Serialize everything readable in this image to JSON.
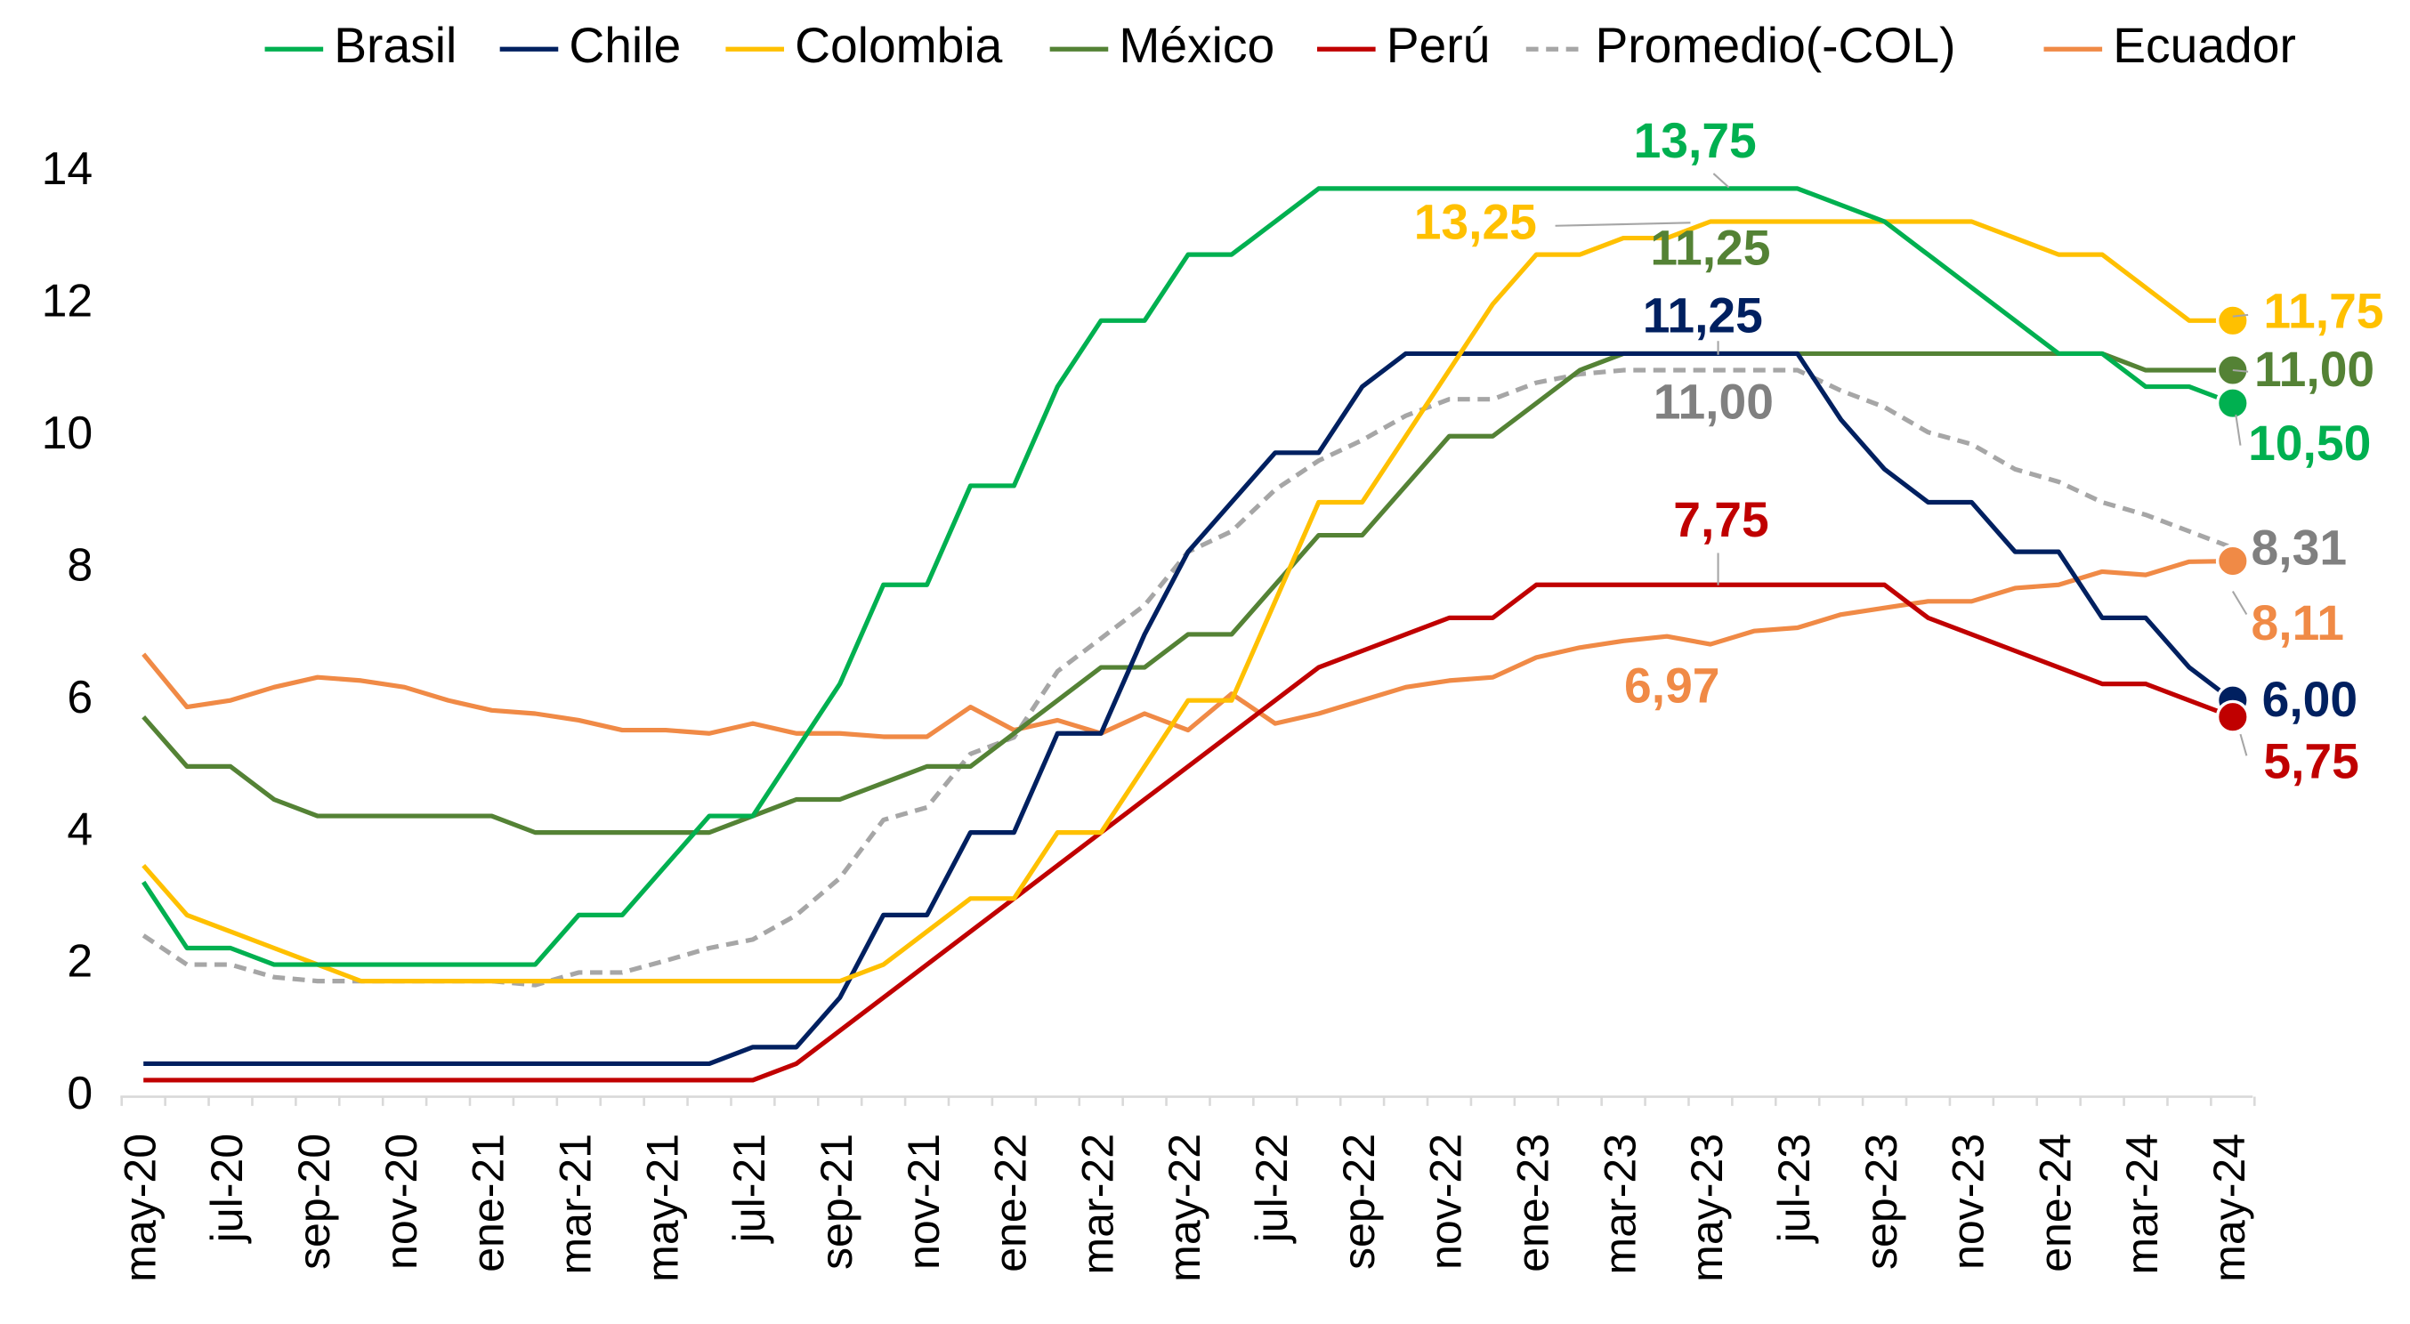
{
  "chart_data": {
    "type": "line",
    "legend": "top",
    "grid": false,
    "categories": [
      "may-20",
      null,
      "jul-20",
      null,
      "sep-20",
      null,
      "nov-20",
      null,
      "ene-21",
      null,
      "mar-21",
      null,
      "may-21",
      null,
      "jul-21",
      null,
      "sep-21",
      null,
      "nov-21",
      null,
      "ene-22",
      null,
      "mar-22",
      null,
      "may-22",
      null,
      "jul-22",
      null,
      "sep-22",
      null,
      "nov-22",
      null,
      "ene-23",
      null,
      "mar-23",
      null,
      "may-23",
      null,
      "jul-23",
      null,
      "sep-23",
      null,
      "nov-23",
      null,
      "ene-24",
      null,
      "mar-24",
      null,
      "may-24"
    ],
    "ylim": [
      0,
      14
    ],
    "yticks": [
      0,
      2,
      4,
      6,
      8,
      10,
      12,
      14
    ],
    "series": [
      {
        "name": "Brasil",
        "color": "#00b050",
        "values": [
          3.25,
          2.25,
          2.25,
          2.0,
          2.0,
          2.0,
          2.0,
          2.0,
          2.0,
          2.0,
          2.75,
          2.75,
          3.5,
          4.25,
          4.25,
          5.25,
          6.25,
          7.75,
          7.75,
          9.25,
          9.25,
          10.75,
          11.75,
          11.75,
          12.75,
          12.75,
          13.25,
          13.75,
          13.75,
          13.75,
          13.75,
          13.75,
          13.75,
          13.75,
          13.75,
          13.75,
          13.75,
          13.75,
          13.75,
          13.5,
          13.25,
          12.75,
          12.25,
          11.75,
          11.25,
          11.25,
          10.75,
          10.75,
          10.5
        ]
      },
      {
        "name": "Chile",
        "color": "#002060",
        "values": [
          0.5,
          0.5,
          0.5,
          0.5,
          0.5,
          0.5,
          0.5,
          0.5,
          0.5,
          0.5,
          0.5,
          0.5,
          0.5,
          0.5,
          0.75,
          0.75,
          1.5,
          2.75,
          2.75,
          4.0,
          4.0,
          5.5,
          5.5,
          7.0,
          8.25,
          9.0,
          9.75,
          9.75,
          10.75,
          11.25,
          11.25,
          11.25,
          11.25,
          11.25,
          11.25,
          11.25,
          11.25,
          11.25,
          11.25,
          10.25,
          9.5,
          9.0,
          9.0,
          8.25,
          8.25,
          7.25,
          7.25,
          6.5,
          6.0
        ]
      },
      {
        "name": "Colombia",
        "color": "#ffc000",
        "values": [
          3.5,
          2.75,
          2.5,
          2.25,
          2.0,
          1.75,
          1.75,
          1.75,
          1.75,
          1.75,
          1.75,
          1.75,
          1.75,
          1.75,
          1.75,
          1.75,
          1.75,
          2.0,
          2.5,
          3.0,
          3.0,
          4.0,
          4.0,
          5.0,
          6.0,
          6.0,
          7.5,
          9.0,
          9.0,
          10.0,
          11.0,
          12.0,
          12.75,
          12.75,
          13.0,
          13.0,
          13.25,
          13.25,
          13.25,
          13.25,
          13.25,
          13.25,
          13.25,
          13.0,
          12.75,
          12.75,
          12.25,
          11.75,
          11.75
        ]
      },
      {
        "name": "México",
        "color": "#548235",
        "values": [
          5.75,
          5.0,
          5.0,
          4.5,
          4.25,
          4.25,
          4.25,
          4.25,
          4.25,
          4.0,
          4.0,
          4.0,
          4.0,
          4.0,
          4.25,
          4.5,
          4.5,
          4.75,
          5.0,
          5.0,
          5.5,
          6.0,
          6.5,
          6.5,
          7.0,
          7.0,
          7.75,
          8.5,
          8.5,
          9.25,
          10.0,
          10.0,
          10.5,
          11.0,
          11.25,
          11.25,
          11.25,
          11.25,
          11.25,
          11.25,
          11.25,
          11.25,
          11.25,
          11.25,
          11.25,
          11.25,
          11.0,
          11.0,
          11.0
        ]
      },
      {
        "name": "Perú",
        "color": "#c00000",
        "values": [
          0.25,
          0.25,
          0.25,
          0.25,
          0.25,
          0.25,
          0.25,
          0.25,
          0.25,
          0.25,
          0.25,
          0.25,
          0.25,
          0.25,
          0.25,
          0.5,
          1.0,
          1.5,
          2.0,
          2.5,
          3.0,
          3.5,
          4.0,
          4.5,
          5.0,
          5.5,
          6.0,
          6.5,
          6.75,
          7.0,
          7.25,
          7.25,
          7.75,
          7.75,
          7.75,
          7.75,
          7.75,
          7.75,
          7.75,
          7.75,
          7.75,
          7.25,
          7.0,
          6.75,
          6.5,
          6.25,
          6.25,
          6.0,
          5.75
        ]
      },
      {
        "name": "Promedio(-COL)",
        "color": "#a6a6a6",
        "dashed": true,
        "values": [
          2.44,
          2.0,
          2.0,
          1.81,
          1.75,
          1.75,
          1.75,
          1.75,
          1.75,
          1.69,
          1.88,
          1.88,
          2.06,
          2.25,
          2.38,
          2.75,
          3.31,
          4.19,
          4.38,
          5.19,
          5.44,
          6.44,
          6.94,
          7.44,
          8.25,
          8.56,
          9.19,
          9.63,
          9.94,
          10.31,
          10.56,
          10.56,
          10.81,
          10.94,
          11.0,
          11.0,
          11.0,
          11.0,
          11.0,
          10.69,
          10.44,
          10.06,
          9.88,
          9.5,
          9.31,
          9.0,
          8.81,
          8.56,
          8.31
        ]
      },
      {
        "name": "Ecuador",
        "color": "#f08a46",
        "values": [
          6.7,
          5.9,
          6.0,
          6.2,
          6.35,
          6.3,
          6.2,
          6.0,
          5.85,
          5.8,
          5.7,
          5.55,
          5.55,
          5.5,
          5.65,
          5.5,
          5.5,
          5.45,
          5.45,
          5.9,
          5.55,
          5.7,
          5.5,
          5.8,
          5.55,
          6.1,
          5.65,
          5.8,
          6.0,
          6.2,
          6.3,
          6.35,
          6.65,
          6.8,
          6.9,
          6.97,
          6.85,
          7.05,
          7.1,
          7.3,
          7.4,
          7.5,
          7.5,
          7.7,
          7.75,
          7.95,
          7.9,
          8.1,
          8.11
        ]
      }
    ],
    "annotations": [
      {
        "text": "13,75",
        "color": "#00b050"
      },
      {
        "text": "13,25",
        "color": "#ffc000"
      },
      {
        "text": "11,25",
        "color": "#548235"
      },
      {
        "text": "11,25",
        "color": "#002060"
      },
      {
        "text": "11,00",
        "color": "#808080"
      },
      {
        "text": "7,75",
        "color": "#c00000"
      },
      {
        "text": "6,97",
        "color": "#f08a46"
      },
      {
        "text": "11,75",
        "color": "#ffc000"
      },
      {
        "text": "11,00",
        "color": "#548235"
      },
      {
        "text": "10,50",
        "color": "#00b050"
      },
      {
        "text": "8,31",
        "color": "#808080"
      },
      {
        "text": "8,11",
        "color": "#f08a46"
      },
      {
        "text": "6,00",
        "color": "#002060"
      },
      {
        "text": "5,75",
        "color": "#c00000"
      }
    ]
  }
}
